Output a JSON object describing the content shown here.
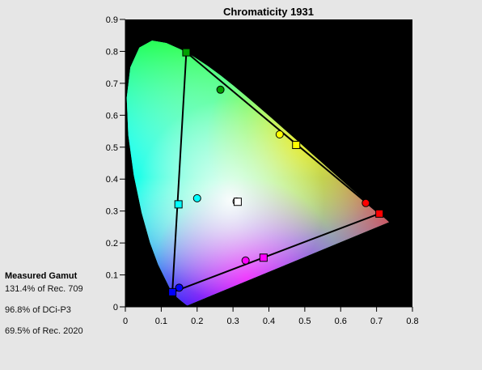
{
  "chart_data": {
    "type": "scatter",
    "title": "Chromaticity 1931",
    "xlabel": "",
    "ylabel": "",
    "xlim": [
      0,
      0.8
    ],
    "ylim": [
      0,
      0.9
    ],
    "x_ticks": [
      "0",
      "0.1",
      "0.2",
      "0.3",
      "0.4",
      "0.5",
      "0.6",
      "0.7",
      "0.8"
    ],
    "y_ticks": [
      "0",
      "0.1",
      "0.2",
      "0.3",
      "0.4",
      "0.5",
      "0.6",
      "0.7",
      "0.8",
      "0.9"
    ],
    "background": "#000000",
    "grid": false,
    "spectral_locus": [
      [
        0.1741,
        0.005
      ],
      [
        0.1738,
        0.0049
      ],
      [
        0.1736,
        0.0049
      ],
      [
        0.1733,
        0.0048
      ],
      [
        0.1726,
        0.0048
      ],
      [
        0.1714,
        0.0051
      ],
      [
        0.1689,
        0.0069
      ],
      [
        0.1644,
        0.0109
      ],
      [
        0.1566,
        0.0177
      ],
      [
        0.144,
        0.0297
      ],
      [
        0.1241,
        0.0578
      ],
      [
        0.0913,
        0.1327
      ],
      [
        0.0687,
        0.2007
      ],
      [
        0.0454,
        0.295
      ],
      [
        0.0235,
        0.4127
      ],
      [
        0.0082,
        0.5384
      ],
      [
        0.0039,
        0.6548
      ],
      [
        0.0139,
        0.7502
      ],
      [
        0.0389,
        0.812
      ],
      [
        0.0743,
        0.8338
      ],
      [
        0.1142,
        0.8262
      ],
      [
        0.1547,
        0.8059
      ],
      [
        0.1929,
        0.7816
      ],
      [
        0.2296,
        0.7543
      ],
      [
        0.2658,
        0.7243
      ],
      [
        0.3016,
        0.6923
      ],
      [
        0.3373,
        0.6589
      ],
      [
        0.3731,
        0.6245
      ],
      [
        0.4087,
        0.5896
      ],
      [
        0.4441,
        0.5547
      ],
      [
        0.4788,
        0.5202
      ],
      [
        0.5125,
        0.4866
      ],
      [
        0.5448,
        0.4544
      ],
      [
        0.5752,
        0.4242
      ],
      [
        0.6029,
        0.3965
      ],
      [
        0.627,
        0.3725
      ],
      [
        0.6482,
        0.3514
      ],
      [
        0.6658,
        0.334
      ],
      [
        0.6801,
        0.3197
      ],
      [
        0.6915,
        0.3083
      ],
      [
        0.7006,
        0.2993
      ],
      [
        0.7079,
        0.292
      ],
      [
        0.714,
        0.2859
      ],
      [
        0.719,
        0.2809
      ],
      [
        0.723,
        0.277
      ],
      [
        0.726,
        0.274
      ],
      [
        0.7283,
        0.2717
      ],
      [
        0.73,
        0.27
      ],
      [
        0.7311,
        0.2689
      ],
      [
        0.732,
        0.268
      ],
      [
        0.7327,
        0.2673
      ],
      [
        0.7334,
        0.2666
      ],
      [
        0.734,
        0.266
      ],
      [
        0.7344,
        0.2656
      ],
      [
        0.7346,
        0.2654
      ],
      [
        0.7347,
        0.2653
      ]
    ],
    "measured_gamut": {
      "red": {
        "x": 0.708,
        "y": 0.292,
        "color": "#ff0000"
      },
      "green": {
        "x": 0.17,
        "y": 0.797,
        "color": "#00a000"
      },
      "blue": {
        "x": 0.131,
        "y": 0.046,
        "color": "#0000ff"
      }
    },
    "square_markers": [
      {
        "name": "red-primary",
        "x": 0.708,
        "y": 0.292,
        "fill": "#ff0000"
      },
      {
        "name": "green-primary",
        "x": 0.17,
        "y": 0.797,
        "fill": "#00a000"
      },
      {
        "name": "blue-primary",
        "x": 0.131,
        "y": 0.046,
        "fill": "#0000ff"
      },
      {
        "name": "yellow-point",
        "x": 0.476,
        "y": 0.507,
        "fill": "#ffff00"
      },
      {
        "name": "cyan-point",
        "x": 0.148,
        "y": 0.321,
        "fill": "#00ffff"
      },
      {
        "name": "magenta-point",
        "x": 0.385,
        "y": 0.154,
        "fill": "#ff00ff"
      },
      {
        "name": "white-point",
        "x": 0.313,
        "y": 0.329,
        "fill": "#ffffff"
      }
    ],
    "circle_markers": [
      {
        "name": "red-target",
        "x": 0.67,
        "y": 0.325,
        "fill": "#ff0000"
      },
      {
        "name": "green-target",
        "x": 0.265,
        "y": 0.68,
        "fill": "#00a000"
      },
      {
        "name": "blue-target",
        "x": 0.15,
        "y": 0.06,
        "fill": "#0000ff"
      },
      {
        "name": "yellow-target",
        "x": 0.43,
        "y": 0.54,
        "fill": "#ffff00"
      },
      {
        "name": "cyan-target",
        "x": 0.2,
        "y": 0.34,
        "fill": "#00ffff"
      },
      {
        "name": "magenta-target",
        "x": 0.335,
        "y": 0.145,
        "fill": "#ff00ff"
      },
      {
        "name": "white-target",
        "x": 0.31,
        "y": 0.33,
        "fill": "#ffffff"
      }
    ]
  },
  "gamut_panel": {
    "title": "Measured Gamut",
    "lines": [
      "131.4% of Rec. 709",
      "96.8% of DCi-P3",
      "69.5% of Rec. 2020"
    ]
  }
}
